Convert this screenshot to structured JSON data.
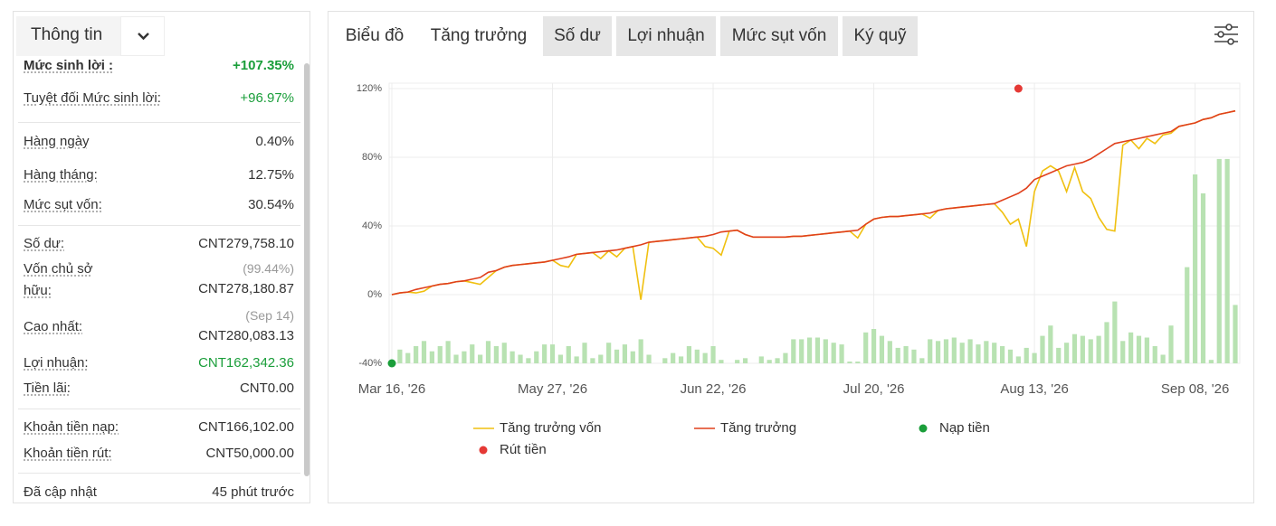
{
  "info": {
    "title": "Thông tin",
    "groups": [
      [
        {
          "label": "Mức sinh lời :",
          "value": "+107.35%",
          "color": "#1a9e3a",
          "bold": true
        },
        {
          "label": "Tuyệt đối Mức sinh lời:",
          "value": "+96.97%",
          "color": "#1a9e3a"
        }
      ],
      [
        {
          "label": "Hàng ngày",
          "value": "0.40%"
        },
        {
          "label": "Hàng tháng:",
          "value": "12.75%"
        },
        {
          "label": "Mức sụt vốn:",
          "value": "30.54%"
        }
      ],
      [
        {
          "label": "Số dư:",
          "value": "CNT279,758.10"
        },
        {
          "label": "Vốn chủ sở hữu:",
          "note": "(99.44%)",
          "value": "CNT278,180.87"
        },
        {
          "label": "Cao nhất:",
          "note": "(Sep 14)",
          "value": "CNT280,083.13"
        },
        {
          "label": "Lợi nhuận:",
          "value": "CNT162,342.36",
          "color": "#1a9e3a"
        },
        {
          "label": "Tiền lãi:",
          "value": "CNT0.00"
        }
      ],
      [
        {
          "label": "Khoản tiền nạp:",
          "value": "CNT166,102.00"
        },
        {
          "label": "Khoản tiền rút:",
          "value": "CNT50,000.00"
        }
      ],
      [
        {
          "label": "Đã cập nhật",
          "value": "45 phút trước"
        }
      ]
    ]
  },
  "tabs": {
    "items": [
      "Biểu đồ",
      "Tăng trưởng",
      "Số dư",
      "Lợi nhuận",
      "Mức sụt vốn",
      "Ký quỹ"
    ],
    "active": 1
  },
  "chart_data": {
    "type": "line",
    "categories": [
      "Mar 16, '26",
      null,
      null,
      null,
      null,
      null,
      null,
      null,
      null,
      null,
      null,
      null,
      null,
      null,
      null,
      null,
      null,
      null,
      null,
      null,
      "May 27, '26",
      null,
      null,
      null,
      null,
      null,
      null,
      null,
      null,
      null,
      null,
      null,
      null,
      null,
      null,
      null,
      null,
      null,
      null,
      null,
      "Jun 22, '26",
      null,
      null,
      null,
      null,
      null,
      null,
      null,
      null,
      null,
      null,
      null,
      null,
      null,
      null,
      null,
      null,
      null,
      null,
      null,
      "Jul 20, '26",
      null,
      null,
      null,
      null,
      null,
      null,
      null,
      null,
      null,
      null,
      null,
      null,
      null,
      null,
      null,
      null,
      null,
      null,
      null,
      "Aug 13, '26",
      null,
      null,
      null,
      null,
      null,
      null,
      null,
      null,
      null,
      null,
      null,
      null,
      null,
      null,
      null,
      null,
      null,
      null,
      null,
      "Sep 08, '26",
      null,
      null,
      null,
      null,
      null
    ],
    "series": [
      {
        "name": "Tăng trưởng vốn",
        "color": "#f0c010",
        "values": [
          0,
          1,
          1.5,
          1,
          2,
          5,
          6,
          6.5,
          7.5,
          8,
          7,
          6,
          10,
          14,
          16,
          17,
          17.5,
          18,
          18.5,
          19,
          20,
          17,
          16,
          23.5,
          24,
          24.5,
          21,
          25.5,
          22,
          27,
          28,
          -3,
          30.5,
          31,
          31.5,
          32,
          32.5,
          33,
          33.5,
          28,
          27,
          23,
          37,
          37.5,
          35,
          33.5,
          33.5,
          33.5,
          33.5,
          33.5,
          34,
          34,
          34.5,
          35,
          35.5,
          36,
          36.5,
          37,
          33,
          41,
          44,
          45,
          45.5,
          45.5,
          46,
          46.5,
          47,
          44.5,
          49,
          50,
          50.5,
          51,
          51.5,
          52,
          52.5,
          53,
          48,
          41,
          44,
          28,
          60,
          72,
          75,
          72,
          60,
          74,
          60,
          56,
          45,
          38,
          37,
          87,
          90,
          85,
          91,
          88,
          93,
          94,
          98,
          99,
          100,
          102,
          103,
          105,
          106,
          107
        ]
      },
      {
        "name": "Tăng trưởng",
        "color": "#e0401c",
        "values": [
          0,
          1,
          1.5,
          3,
          4,
          5,
          6,
          6.5,
          7.5,
          8,
          9,
          10,
          13,
          14,
          16,
          17,
          17.5,
          18,
          18.5,
          19,
          20,
          21,
          22,
          23.5,
          24,
          24.5,
          25,
          25.5,
          26,
          27,
          28,
          29,
          30.5,
          31,
          31.5,
          32,
          32.5,
          33,
          33.5,
          34,
          35,
          36.5,
          37,
          37.5,
          35,
          33.5,
          33.5,
          33.5,
          33.5,
          33.5,
          34,
          34,
          34.5,
          35,
          35.5,
          36,
          36.5,
          37,
          37.5,
          41,
          44,
          45,
          45.5,
          45.5,
          46,
          46.5,
          47,
          47.5,
          49,
          50,
          50.5,
          51,
          51.5,
          52,
          52.5,
          53,
          55,
          57,
          59,
          62,
          67,
          69,
          71,
          73,
          75,
          76,
          77,
          79,
          82,
          85,
          88,
          89,
          90,
          91,
          92,
          93,
          94,
          95,
          98,
          99,
          100,
          102,
          103,
          105,
          106,
          107
        ]
      }
    ],
    "bars": {
      "color": "#b8e2b2",
      "values": [
        -38,
        -32,
        -34,
        -30,
        -27,
        -33,
        -30,
        -27,
        -35,
        -33,
        -29,
        -35,
        -27,
        -30,
        -28,
        -33,
        -35,
        -37,
        -33,
        -29,
        -29,
        -35,
        -30,
        -36,
        -28,
        -37,
        -35,
        -28,
        -32,
        -29,
        -33,
        -26,
        -35,
        -40,
        -37,
        -34,
        -36,
        -30,
        -32,
        -34,
        -30,
        -38,
        -40,
        -38,
        -37,
        -40,
        -36,
        -38,
        -37,
        -34,
        -26,
        -26,
        -25,
        -25,
        -26,
        -28,
        -29,
        -39,
        -39,
        -22,
        -20,
        -24,
        -27,
        -31,
        -30,
        -32,
        -37,
        -26,
        -27,
        -26,
        -25,
        -28,
        -26,
        -29,
        -27,
        -28,
        -30,
        -32,
        -36,
        -31,
        -34,
        -24,
        -18,
        -31,
        -28,
        -23,
        -24,
        -26,
        -24,
        -16,
        -4,
        -27,
        -22,
        -24,
        -25,
        -30,
        -35,
        -18,
        -38,
        16,
        70,
        59,
        -38,
        79,
        79,
        -6
      ]
    },
    "markers": [
      {
        "name": "Nạp tiền",
        "color": "#1a9e3a",
        "at": 0,
        "value": -40
      },
      {
        "name": "Rút tiền",
        "color": "#e53935",
        "at": 78,
        "value": 120
      }
    ],
    "ylim": [
      -40,
      120
    ],
    "yticks": [
      {
        "value": -40,
        "label": "-40%"
      },
      {
        "value": 0,
        "label": "0%"
      },
      {
        "value": 40,
        "label": "40%"
      },
      {
        "value": 80,
        "label": "80%"
      },
      {
        "value": 120,
        "label": "120%"
      }
    ],
    "grid": true
  }
}
